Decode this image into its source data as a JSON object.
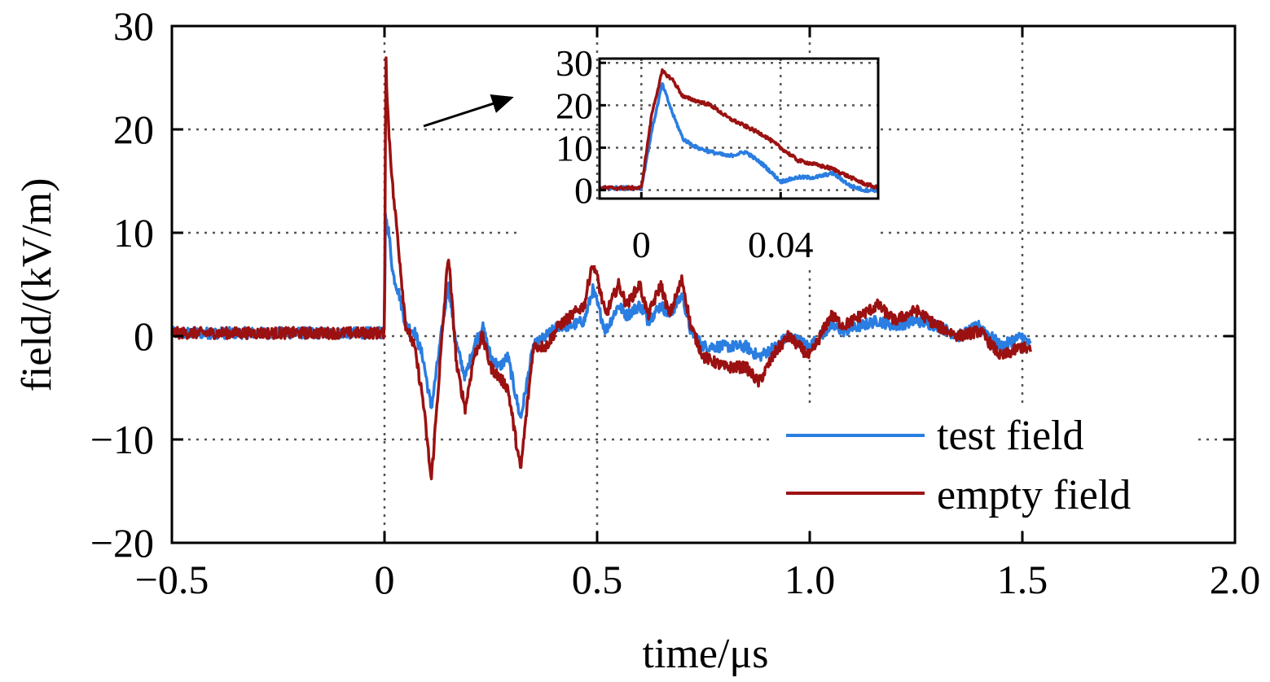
{
  "chart_data": {
    "type": "line",
    "xlabel": "time/μs",
    "ylabel": "field/(kV/m)",
    "xlim": [
      -0.5,
      2.0
    ],
    "ylim": [
      -20,
      30
    ],
    "xticks": [
      "−0.5",
      "0",
      "0.5",
      "1.0",
      "1.5",
      "2.0"
    ],
    "xtick_values": [
      -0.5,
      0,
      0.5,
      1.0,
      1.5,
      2.0
    ],
    "yticks": [
      "−20",
      "−10",
      "0",
      "10",
      "20",
      "30"
    ],
    "ytick_values": [
      -20,
      -10,
      0,
      10,
      20,
      30
    ],
    "grid": "dotted",
    "legend_position": "bottom-right",
    "colors": {
      "test": "#2a7de1",
      "empty": "#9b1111"
    },
    "series": [
      {
        "name": "test field",
        "x": [
          -0.5,
          0.0,
          0.002,
          0.005,
          0.01,
          0.02,
          0.035,
          0.05,
          0.07,
          0.09,
          0.11,
          0.13,
          0.15,
          0.17,
          0.19,
          0.21,
          0.23,
          0.25,
          0.27,
          0.29,
          0.32,
          0.35,
          0.38,
          0.41,
          0.44,
          0.47,
          0.49,
          0.52,
          0.55,
          0.57,
          0.6,
          0.62,
          0.65,
          0.67,
          0.7,
          0.72,
          0.75,
          0.8,
          0.85,
          0.88,
          0.92,
          0.95,
          1.0,
          1.05,
          1.08,
          1.12,
          1.16,
          1.2,
          1.25,
          1.3,
          1.35,
          1.4,
          1.45,
          1.5,
          1.52
        ],
        "y": [
          0.3,
          0.3,
          12,
          11,
          10,
          6,
          4,
          1,
          0.5,
          -2,
          -7,
          -1,
          5,
          -1,
          -4,
          -1,
          1,
          -2,
          -3,
          -2,
          -8,
          -1,
          0,
          1,
          1,
          1.5,
          4.5,
          0.5,
          3,
          2,
          3,
          1.5,
          3,
          2,
          4,
          0.5,
          -1,
          -1,
          -1,
          -2,
          -1,
          0,
          -1,
          1,
          0.5,
          1,
          1.5,
          1,
          1.5,
          1,
          0,
          1,
          -1,
          0,
          -1
        ]
      },
      {
        "name": "empty field",
        "x": [
          -0.5,
          0.0,
          0.003,
          0.006,
          0.01,
          0.02,
          0.03,
          0.05,
          0.07,
          0.09,
          0.11,
          0.13,
          0.15,
          0.17,
          0.19,
          0.21,
          0.23,
          0.25,
          0.27,
          0.29,
          0.32,
          0.35,
          0.38,
          0.41,
          0.44,
          0.47,
          0.49,
          0.52,
          0.55,
          0.57,
          0.6,
          0.62,
          0.65,
          0.67,
          0.7,
          0.72,
          0.75,
          0.8,
          0.85,
          0.88,
          0.92,
          0.95,
          1.0,
          1.05,
          1.08,
          1.12,
          1.16,
          1.2,
          1.25,
          1.3,
          1.35,
          1.4,
          1.45,
          1.5,
          1.52
        ],
        "y": [
          0.3,
          0.3,
          28,
          23,
          20,
          14,
          10,
          1,
          -1,
          -6,
          -14,
          -3,
          8,
          -3,
          -7,
          -2,
          0,
          -3,
          -4,
          -5,
          -13,
          -1,
          -1,
          1,
          2,
          3,
          7.5,
          2,
          5,
          3,
          5,
          2,
          5,
          2,
          5.5,
          1,
          -2,
          -3,
          -3,
          -4.5,
          -1.5,
          0,
          -2,
          2,
          1,
          2,
          3,
          1.5,
          2.5,
          1,
          0,
          0.5,
          -2,
          -1,
          -1.5
        ]
      }
    ],
    "inset": {
      "xlim": [
        -0.012,
        0.068
      ],
      "ylim": [
        -2,
        31
      ],
      "xticks": [
        "0",
        "0.04"
      ],
      "xtick_values": [
        0,
        0.04
      ],
      "yticks": [
        "0",
        "10",
        "20",
        "30"
      ],
      "ytick_values": [
        0,
        10,
        20,
        30
      ],
      "series": [
        {
          "name": "test field",
          "x": [
            -0.012,
            -0.005,
            0.0,
            0.003,
            0.006,
            0.009,
            0.012,
            0.016,
            0.02,
            0.025,
            0.03,
            0.035,
            0.04,
            0.045,
            0.05,
            0.055,
            0.06,
            0.064,
            0.068
          ],
          "y": [
            0.5,
            0.5,
            0.5,
            14,
            25,
            18,
            12,
            10,
            9,
            8,
            9,
            6,
            2,
            3,
            3,
            4,
            1,
            0,
            0
          ]
        },
        {
          "name": "empty field",
          "x": [
            -0.012,
            -0.005,
            0.0,
            0.003,
            0.006,
            0.009,
            0.012,
            0.016,
            0.02,
            0.025,
            0.03,
            0.035,
            0.04,
            0.045,
            0.05,
            0.055,
            0.06,
            0.064,
            0.068
          ],
          "y": [
            0.5,
            0.5,
            0.5,
            18,
            28,
            26,
            22,
            21,
            20,
            17,
            15,
            13,
            10,
            7,
            6,
            5,
            3,
            1.5,
            0.5
          ]
        }
      ]
    }
  }
}
